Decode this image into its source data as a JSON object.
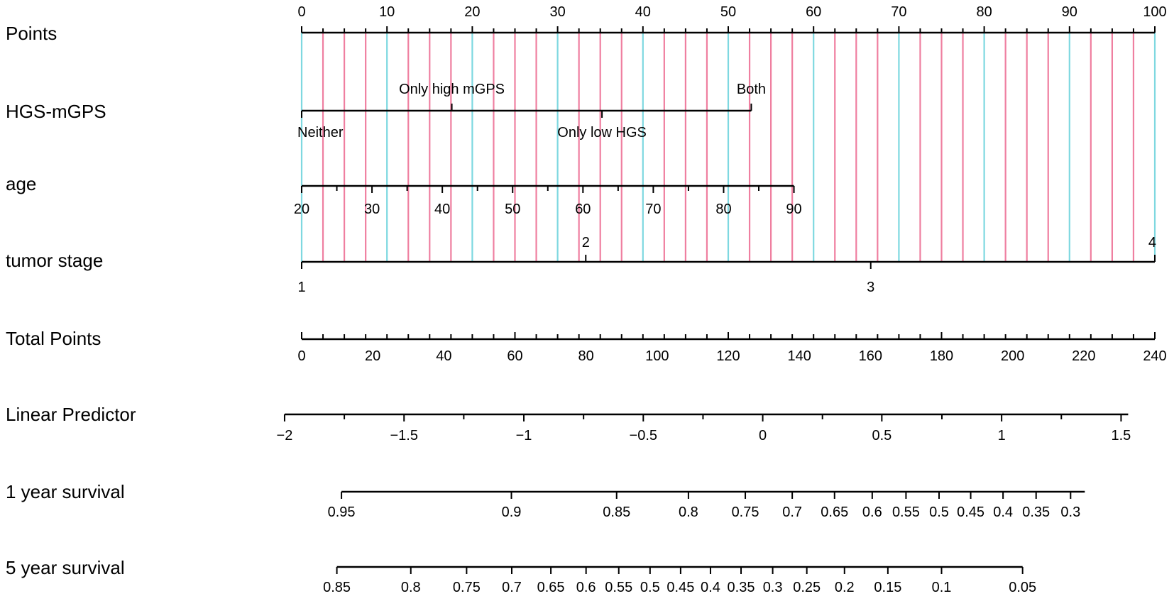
{
  "chart_data": {
    "type": "nomogram",
    "title": "",
    "colors": {
      "major_grid": "#7ed8e0",
      "minor_grid": "#ef7fa0",
      "axis": "#000000",
      "background": "#ffffff"
    },
    "points_scale": {
      "label": "Points",
      "range": [
        0,
        100
      ],
      "major_ticks": [
        0,
        10,
        20,
        30,
        40,
        50,
        60,
        70,
        80,
        90,
        100
      ],
      "minor_step": 2.5
    },
    "variables": [
      {
        "label": "HGS-mGPS",
        "kind": "categorical",
        "levels": [
          {
            "name": "Neither",
            "points": 0,
            "label_pos": "below"
          },
          {
            "name": "Only high mGPS",
            "points": 17.6,
            "label_pos": "above"
          },
          {
            "name": "Only low HGS",
            "points": 35.2,
            "label_pos": "below"
          },
          {
            "name": "Both",
            "points": 52.7,
            "label_pos": "above"
          }
        ]
      },
      {
        "label": "age",
        "kind": "continuous",
        "value_range": [
          20,
          90
        ],
        "points_range": [
          0,
          57.7
        ],
        "labeled_ticks": [
          20,
          30,
          40,
          50,
          60,
          70,
          80,
          90
        ],
        "minor_ticks": [
          25,
          35,
          45,
          55,
          65,
          75,
          85
        ],
        "tick_labels": [
          "20",
          "30",
          "40",
          "50",
          "60",
          "70",
          "80",
          "90"
        ]
      },
      {
        "label": "tumor stage",
        "kind": "categorical",
        "levels": [
          {
            "name": "1",
            "points": 0,
            "label_pos": "below"
          },
          {
            "name": "2",
            "points": 33.3,
            "label_pos": "above"
          },
          {
            "name": "3",
            "points": 66.7,
            "label_pos": "below"
          },
          {
            "name": "4",
            "points": 100,
            "label_pos": "above"
          }
        ]
      }
    ],
    "total_points": {
      "label": "Total Points",
      "range": [
        0,
        240
      ],
      "major_ticks": [
        0,
        20,
        40,
        60,
        80,
        100,
        120,
        140,
        160,
        180,
        200,
        220,
        240
      ],
      "tick_labels": [
        "0",
        "20",
        "40",
        "60",
        "80",
        "100",
        "120",
        "140",
        "160",
        "180",
        "200",
        "220",
        "240"
      ],
      "minor_step": 6
    },
    "linear_predictor": {
      "label": "Linear Predictor",
      "range_total_points": [
        -4.8,
        232.5
      ],
      "labeled_ticks": [
        {
          "value": -2,
          "text": "−2",
          "total_points": -4.8
        },
        {
          "value": -1.5,
          "text": "−1.5",
          "total_points": 28.8
        },
        {
          "value": -1,
          "text": "−1",
          "total_points": 62.5
        },
        {
          "value": -0.5,
          "text": "−0.5",
          "total_points": 96.1
        },
        {
          "value": 0,
          "text": "0",
          "total_points": 129.7
        },
        {
          "value": 0.5,
          "text": "0.5",
          "total_points": 163.2
        },
        {
          "value": 1,
          "text": "1",
          "total_points": 196.9
        },
        {
          "value": 1.5,
          "text": "1.5",
          "total_points": 230.5
        }
      ],
      "minor_ticks_total_points": [
        12.0,
        45.6,
        79.3,
        112.9,
        146.5,
        180.1,
        213.7
      ]
    },
    "survival_scales": [
      {
        "label": "1 year survival",
        "line_range_total_points": [
          11.2,
          220.3
        ],
        "ticks": [
          {
            "text": "0.95",
            "total_points": 11.2
          },
          {
            "text": "0.9",
            "total_points": 59.0
          },
          {
            "text": "0.85",
            "total_points": 88.6
          },
          {
            "text": "0.8",
            "total_points": 108.8
          },
          {
            "text": "0.75",
            "total_points": 124.8
          },
          {
            "text": "0.7",
            "total_points": 138.0
          },
          {
            "text": "0.65",
            "total_points": 149.9
          },
          {
            "text": "0.6",
            "total_points": 160.5
          },
          {
            "text": "0.55",
            "total_points": 170.0
          },
          {
            "text": "0.5",
            "total_points": 179.3
          },
          {
            "text": "0.45",
            "total_points": 188.2
          },
          {
            "text": "0.4",
            "total_points": 197.3
          },
          {
            "text": "0.35",
            "total_points": 206.6
          },
          {
            "text": "0.3",
            "total_points": 216.3
          }
        ]
      },
      {
        "label": "5 year survival",
        "line_range_total_points": [
          9.9,
          202.8
        ],
        "ticks": [
          {
            "text": "0.85",
            "total_points": 9.9
          },
          {
            "text": "0.8",
            "total_points": 30.7
          },
          {
            "text": "0.75",
            "total_points": 46.4
          },
          {
            "text": "0.7",
            "total_points": 59.1
          },
          {
            "text": "0.65",
            "total_points": 70.1
          },
          {
            "text": "0.6",
            "total_points": 80.0
          },
          {
            "text": "0.55",
            "total_points": 89.2
          },
          {
            "text": "0.5",
            "total_points": 98.0
          },
          {
            "text": "0.45",
            "total_points": 106.6
          },
          {
            "text": "0.4",
            "total_points": 115.0
          },
          {
            "text": "0.35",
            "total_points": 123.6
          },
          {
            "text": "0.3",
            "total_points": 132.5
          },
          {
            "text": "0.25",
            "total_points": 142.1
          },
          {
            "text": "0.2",
            "total_points": 152.7
          },
          {
            "text": "0.15",
            "total_points": 164.9
          },
          {
            "text": "0.1",
            "total_points": 180.0
          },
          {
            "text": "0.05",
            "total_points": 202.8
          }
        ]
      }
    ]
  }
}
